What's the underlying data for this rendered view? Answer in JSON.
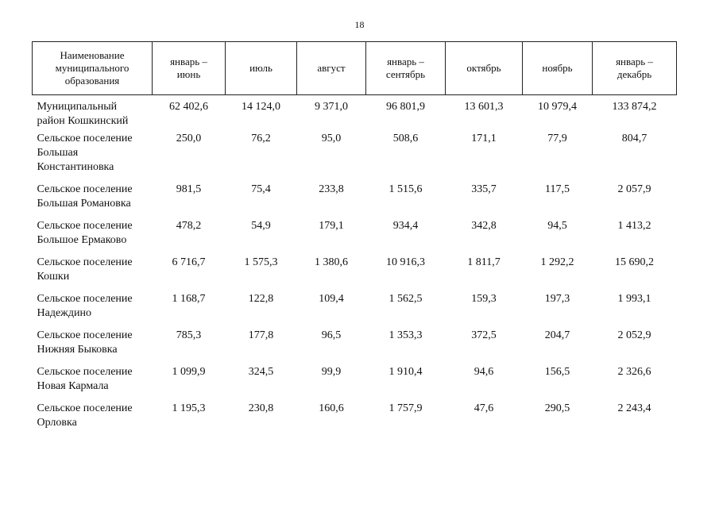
{
  "page_number": "18",
  "table": {
    "headers": [
      "Наименование\nмуниципального\nобразования",
      "январь –\nиюнь",
      "июль",
      "август",
      "январь –\nсентябрь",
      "октябрь",
      "ноябрь",
      "январь –\nдекабрь"
    ],
    "rows": [
      {
        "name": "Муниципальный\nрайон Кошкинский",
        "values": [
          "62 402,6",
          "14 124,0",
          "9 371,0",
          "96 801,9",
          "13 601,3",
          "10 979,4",
          "133 874,2"
        ]
      },
      {
        "name": "Сельское поселение\nБольшая\nКонстантиновка",
        "values": [
          "250,0",
          "76,2",
          "95,0",
          "508,6",
          "171,1",
          "77,9",
          "804,7"
        ]
      },
      {
        "name": "Сельское поселение\nБольшая Романовка",
        "values": [
          "981,5",
          "75,4",
          "233,8",
          "1 515,6",
          "335,7",
          "117,5",
          "2 057,9"
        ]
      },
      {
        "name": "Сельское поселение\nБольшое Ермаково",
        "values": [
          "478,2",
          "54,9",
          "179,1",
          "934,4",
          "342,8",
          "94,5",
          "1 413,2"
        ]
      },
      {
        "name": "Сельское поселение\nКошки",
        "values": [
          "6 716,7",
          "1 575,3",
          "1 380,6",
          "10 916,3",
          "1 811,7",
          "1 292,2",
          "15 690,2"
        ]
      },
      {
        "name": "Сельское поселение\nНадеждино",
        "values": [
          "1 168,7",
          "122,8",
          "109,4",
          "1 562,5",
          "159,3",
          "197,3",
          "1 993,1"
        ]
      },
      {
        "name": "Сельское поселение\nНижняя Быковка",
        "values": [
          "785,3",
          "177,8",
          "96,5",
          "1 353,3",
          "372,5",
          "204,7",
          "2 052,9"
        ]
      },
      {
        "name": "Сельское поселение\nНовая Кармала",
        "values": [
          "1 099,9",
          "324,5",
          "99,9",
          "1 910,4",
          "94,6",
          "156,5",
          "2 326,6"
        ]
      },
      {
        "name": "Сельское поселение\nОрловка",
        "values": [
          "1 195,3",
          "230,8",
          "160,6",
          "1 757,9",
          "47,6",
          "290,5",
          "2 243,4"
        ]
      }
    ]
  }
}
